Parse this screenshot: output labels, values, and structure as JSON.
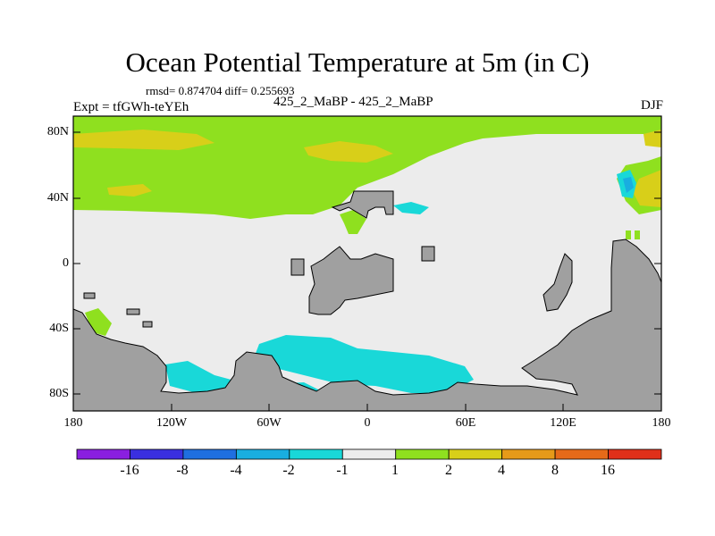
{
  "title": "Ocean Potential Temperature at 5m (in C)",
  "stats": "rmsd= 0.874704 diff= 0.255693",
  "left_label": "Expt = tfGWh-teYEh",
  "center_label": "425_2_MaBP - 425_2_MaBP",
  "right_label": "DJF",
  "lat_ticks": [
    "80N",
    "40N",
    "0",
    "40S",
    "80S"
  ],
  "lon_ticks": [
    "180",
    "120W",
    "60W",
    "0",
    "60E",
    "120E",
    "180"
  ],
  "colorbar": {
    "labels": [
      "-16",
      "-8",
      "-4",
      "-2",
      "-1",
      "1",
      "2",
      "4",
      "8",
      "16"
    ],
    "colors": [
      "#8a1fe0",
      "#3a2fe0",
      "#1f6fe0",
      "#19aee0",
      "#19d8d8",
      "#ececec",
      "#8fe01f",
      "#d8cf19",
      "#e69a19",
      "#e66a19",
      "#e0301a"
    ]
  },
  "colors": {
    "land": "#a0a0a0",
    "neutral": "#ececec",
    "plus1_2": "#8fe01f",
    "plus2_4": "#d8cf19",
    "minus1_2": "#19d8d8",
    "minus2_4": "#19aee0"
  }
}
